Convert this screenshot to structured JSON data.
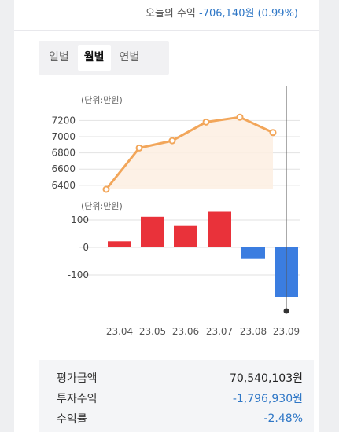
{
  "today": {
    "label": "오늘의 수익",
    "value": "-706,140원 (0.99%)"
  },
  "tabs": [
    {
      "label": "일별",
      "active": false
    },
    {
      "label": "월별",
      "active": true
    },
    {
      "label": "연별",
      "active": false
    }
  ],
  "chart_data": [
    {
      "type": "line",
      "title": "",
      "unit_label": "(단위:만원)",
      "x": [
        "23.04",
        "23.05",
        "23.06",
        "23.07",
        "23.08",
        "23.09"
      ],
      "y": [
        6350,
        6860,
        6950,
        7180,
        7240,
        7050
      ],
      "yticks": [
        6400,
        6600,
        6800,
        7000,
        7200
      ],
      "ylim": [
        6350,
        7300
      ],
      "grid": true,
      "line_color": "#f2a65a",
      "fill_color": "#fdeee2"
    },
    {
      "type": "bar",
      "title": "",
      "unit_label": "(단위:만원)",
      "categories": [
        "23.04",
        "23.05",
        "23.06",
        "23.07",
        "23.08",
        "23.09"
      ],
      "values": [
        22,
        112,
        78,
        130,
        -42,
        -180
      ],
      "yticks": [
        100,
        0,
        -100
      ],
      "ylim": [
        -180,
        130
      ],
      "grid": true,
      "positive_color": "#e9323a",
      "negative_color": "#3b7de0"
    }
  ],
  "summary": {
    "eval_label": "평가금액",
    "eval_value": "70,540,103원",
    "profit_label": "투자수익",
    "profit_value": "-1,796,930원",
    "rate_label": "수익률",
    "rate_value": "-2.48%"
  }
}
